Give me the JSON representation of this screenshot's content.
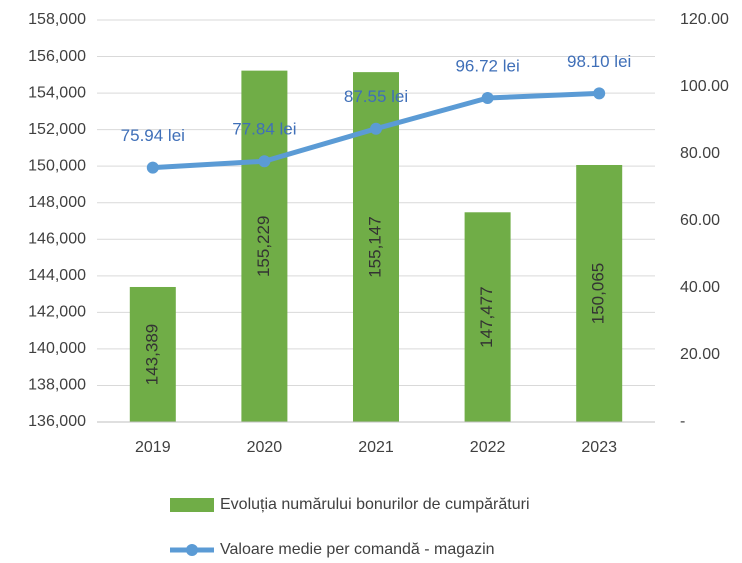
{
  "chart_data": {
    "type": "bar",
    "categories": [
      "2019",
      "2020",
      "2021",
      "2022",
      "2023"
    ],
    "series": [
      {
        "name": "Evoluția numărului bonurilor de cumpărături",
        "type": "bar",
        "color": "#70ad47",
        "values": [
          143389,
          155229,
          155147,
          147477,
          150065
        ],
        "value_labels": [
          "143,389",
          "155,229",
          "155,147",
          "147,477",
          "150,065"
        ]
      },
      {
        "name": "Valoare medie per comandă - magazin",
        "type": "line",
        "axis": "y2",
        "color": "#5b9bd5",
        "values": [
          75.94,
          77.84,
          87.55,
          96.72,
          98.1
        ],
        "value_labels": [
          "75.94 lei",
          "77.84 lei",
          "87.55 lei",
          "96.72 lei",
          "98.10 lei"
        ]
      }
    ],
    "ylim": [
      136000,
      158000
    ],
    "yticks": [
      {
        "value": 136000,
        "label": "136,000"
      },
      {
        "value": 138000,
        "label": "138,000"
      },
      {
        "value": 140000,
        "label": "140,000"
      },
      {
        "value": 142000,
        "label": "142,000"
      },
      {
        "value": 144000,
        "label": "144,000"
      },
      {
        "value": 146000,
        "label": "146,000"
      },
      {
        "value": 148000,
        "label": "148,000"
      },
      {
        "value": 150000,
        "label": "150,000"
      },
      {
        "value": 152000,
        "label": "152,000"
      },
      {
        "value": 154000,
        "label": "154,000"
      },
      {
        "value": 156000,
        "label": "156,000"
      },
      {
        "value": 158000,
        "label": "158,000"
      }
    ],
    "y2lim": [
      0,
      120
    ],
    "y2ticks": [
      {
        "value": 0,
        "label": "-"
      },
      {
        "value": 20,
        "label": "20.00"
      },
      {
        "value": 40,
        "label": "40.00"
      },
      {
        "value": 60,
        "label": "60.00"
      },
      {
        "value": 80,
        "label": "80.00"
      },
      {
        "value": 100,
        "label": "100.00"
      },
      {
        "value": 120,
        "label": "120.00"
      }
    ],
    "grid": true,
    "legend": "bottom"
  }
}
